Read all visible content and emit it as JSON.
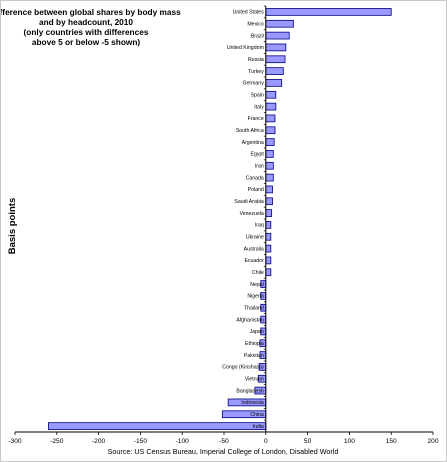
{
  "chart_data": {
    "type": "bar",
    "orientation": "horizontal",
    "title_lines": [
      "Difference between global shares by body mass",
      "and by headcount, 2010",
      "(only countries with differences",
      "above 5 or below -5 shown)"
    ],
    "xlabel": "Source: US Census Bureau, Imperial College of London, Disabled World",
    "ylabel": "Basis points",
    "xlim": [
      -300,
      200
    ],
    "x_ticks": [
      -300,
      -250,
      -200,
      -150,
      -100,
      -50,
      0,
      50,
      100,
      150,
      200
    ],
    "grid": false,
    "legend": "none",
    "bar_color": "#9999ff",
    "bar_edge_color": "#000080",
    "categories": [
      "United States",
      "Mexico",
      "Brazil",
      "United Kingdom",
      "Russia",
      "Turkey",
      "Germany",
      "Spain",
      "Italy",
      "France",
      "South Africa",
      "Argentina",
      "Egypt",
      "Iran",
      "Canada",
      "Poland",
      "Saudi Arabia",
      "Venezuela",
      "Iraq",
      "Ukraine",
      "Australia",
      "Ecuador",
      "Chile",
      "Nepal",
      "Nigeria",
      "Thailand",
      "Afghanistan",
      "Japan",
      "Ethiopia",
      "Pakistan",
      "Congo (Kinshasa)",
      "Vietnam",
      "Bangladesh",
      "Indonesia",
      "China",
      "India"
    ],
    "values": [
      150,
      33,
      28,
      24,
      23,
      21,
      19,
      12,
      12,
      11,
      11,
      10,
      9,
      9,
      9,
      8,
      8,
      7,
      6,
      6,
      6,
      6,
      6,
      -6,
      -6,
      -6,
      -6,
      -6,
      -7,
      -7,
      -8,
      -9,
      -13,
      -45,
      -52,
      -260
    ]
  }
}
